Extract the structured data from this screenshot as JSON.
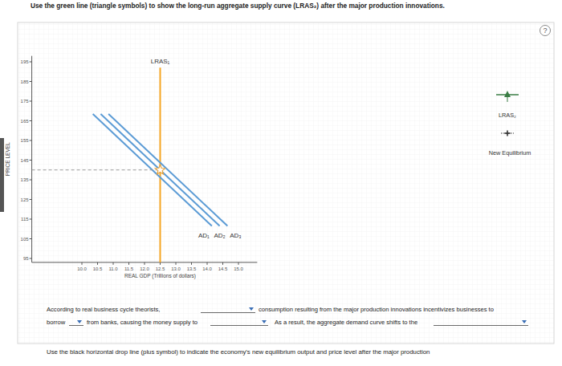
{
  "instruction": "Use the green line (triangle symbols) to show the long-run aggregate supply curve (LRAS₂) after the major production innovations.",
  "help": "?",
  "chart_data": {
    "type": "line",
    "x_label": "REAL GDP (Trillions of dollars)",
    "y_label": "PRICE LEVEL",
    "xlim": [
      8.4,
      15.6
    ],
    "ylim": [
      93,
      198
    ],
    "xticks": [
      {
        "value": 10,
        "label": "10.0"
      },
      {
        "value": 10.5,
        "label": "10.5"
      },
      {
        "value": 11,
        "label": "11.0"
      },
      {
        "value": 11.5,
        "label": "11.5"
      },
      {
        "value": 12,
        "label": "12.0"
      },
      {
        "value": 12.5,
        "label": "12.5"
      },
      {
        "value": 13,
        "label": "13.0"
      },
      {
        "value": 13.5,
        "label": "13.5"
      },
      {
        "value": 14,
        "label": "14.0"
      },
      {
        "value": 14.5,
        "label": "14.5"
      },
      {
        "value": 15,
        "label": "15.0"
      }
    ],
    "yticks": [
      95,
      105,
      115,
      125,
      135,
      145,
      155,
      165,
      175,
      185,
      195
    ],
    "grid": false,
    "series": [
      {
        "name": "LRAS₁",
        "color": "#f5a623",
        "x": [
          12.5,
          12.5
        ],
        "values": [
          93,
          192
        ]
      },
      {
        "name": "AD₁",
        "color": "#5b9bd5",
        "x": [
          10.35,
          14.15
        ],
        "values": [
          168.5,
          111.5
        ]
      },
      {
        "name": "AD₂",
        "color": "#5b9bd5",
        "x": [
          10.6,
          14.4
        ],
        "values": [
          168.5,
          111.5
        ]
      },
      {
        "name": "AD₃",
        "color": "#5b9bd5",
        "x": [
          10.85,
          14.65
        ],
        "values": [
          168.5,
          111.5
        ]
      },
      {
        "type": "line",
        "line_style": "dashed",
        "color": "#9a9a9a",
        "x": [
          8.4,
          12.5
        ],
        "values": [
          140,
          140
        ]
      },
      {
        "type": "scatter",
        "marker": "star",
        "color": "#e8a33d",
        "x": [
          12.5
        ],
        "values": [
          140
        ]
      }
    ]
  },
  "palette": {
    "items": [
      {
        "label": "LRAS₂",
        "marker": "triangle",
        "color": "#3a7d44"
      },
      {
        "label": "New Equilibrium",
        "marker": "plus",
        "color": "#333333"
      }
    ]
  },
  "question": {
    "lines": [
      [
        "According to real business cycle theorists,",
        "consumption resulting from the major production innovations incentivizes businesses to"
      ],
      [
        "borrow",
        "from banks, causing the money supply to",
        "As a result, the aggregate demand curve shifts to the"
      ],
      [
        "Use the black horizontal drop line (plus symbol) to indicate the economy's new equilibrium output and price level after the major production"
      ]
    ]
  }
}
